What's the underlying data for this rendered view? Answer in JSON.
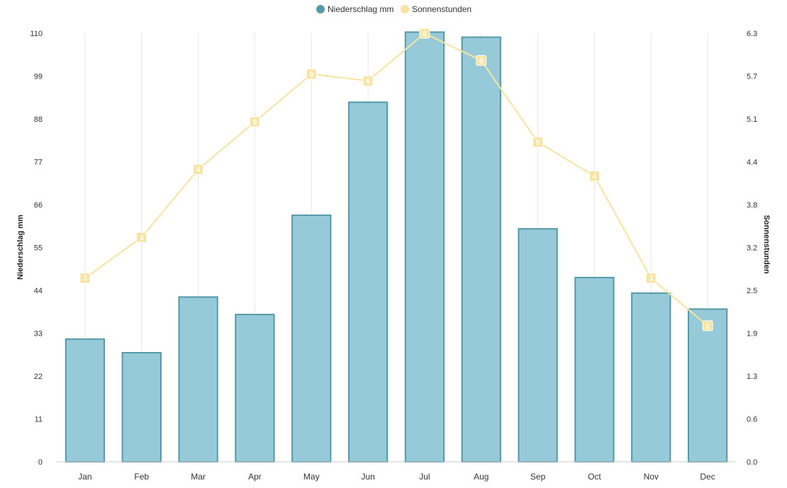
{
  "chart_data": {
    "type": "bar",
    "categories": [
      "Jan",
      "Feb",
      "Mar",
      "Apr",
      "May",
      "Jun",
      "Jul",
      "Aug",
      "Sep",
      "Oct",
      "Nov",
      "Dec"
    ],
    "series": [
      {
        "name": "Niederschlag mm",
        "type": "bar",
        "axis": "left",
        "color": "#96cad9",
        "border_color": "#5499aa",
        "values": [
          31.5,
          28,
          42.3,
          37.8,
          63.3,
          92.3,
          110.3,
          109,
          59.8,
          47.3,
          43.3,
          39.2
        ]
      },
      {
        "name": "Sonnenstunden",
        "type": "line",
        "axis": "right",
        "color": "#f9e3a0",
        "values": [
          2.7,
          3.3,
          4.3,
          5.0,
          5.7,
          5.6,
          6.3,
          5.9,
          4.7,
          4.2,
          2.7,
          2.0
        ],
        "point_labels": [
          "3",
          "3",
          "4",
          "5",
          "6",
          "6",
          "6",
          "6",
          "5",
          "4",
          "3",
          "2"
        ]
      }
    ],
    "ylabel": "Niederschlag mm",
    "y2label": "Sonnenstunden",
    "ylim": [
      0,
      110
    ],
    "y2lim": [
      0,
      6.3
    ],
    "yticks": [
      "0",
      "11",
      "22",
      "33",
      "44",
      "55",
      "66",
      "77",
      "88",
      "99",
      "110"
    ],
    "y2ticks": [
      "0.0",
      "0.6",
      "1.3",
      "1.9",
      "2.5",
      "3.2",
      "3.8",
      "4.4",
      "5.1",
      "5.7",
      "6.3"
    ],
    "grid": "vertical",
    "legend_position": "top-center"
  }
}
